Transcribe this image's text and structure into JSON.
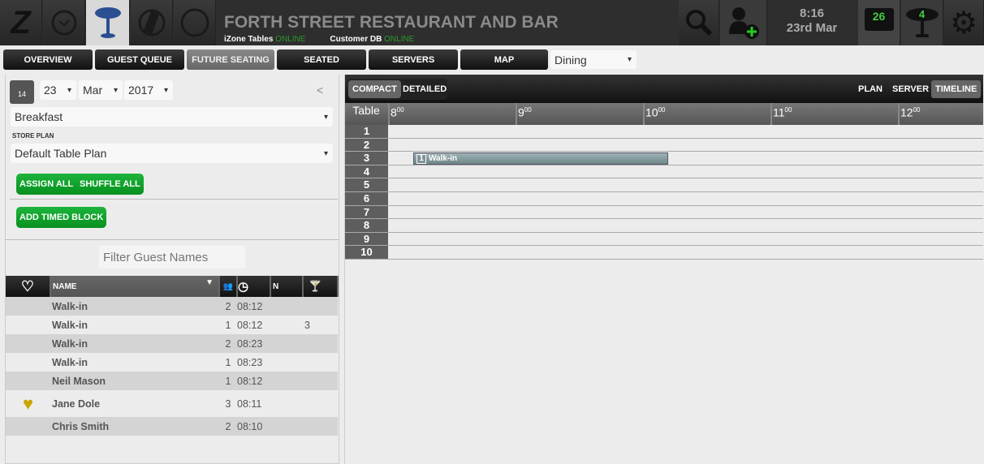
{
  "header": {
    "title": "FORTH STREET RESTAURANT AND BAR",
    "status": [
      {
        "label": "iZone Tables",
        "value": "ONLINE"
      },
      {
        "label": "Customer DB",
        "value": "ONLINE"
      }
    ],
    "time": "8:16",
    "date": "23rd Mar",
    "messages_count": "26",
    "tables_count": "4",
    "icons": [
      "izone-logo-icon",
      "clock-icon",
      "table-icon",
      "phone-icon",
      "circle-icon",
      "search-icon",
      "add-user-icon",
      "message-icon",
      "table-count-icon",
      "gear-icon"
    ]
  },
  "nav": {
    "tabs": [
      "OVERVIEW",
      "GUEST QUEUE",
      "FUTURE SEATING",
      "SEATED",
      "SERVERS",
      "MAP"
    ],
    "active": "FUTURE SEATING",
    "area": "Dining"
  },
  "left": {
    "day": "23",
    "month": "Mar",
    "year": "2017",
    "collapse": "<",
    "session": "Breakfast",
    "store_plan_label": "STORE PLAN",
    "store_plan": "Default Table Plan",
    "assign_all": "ASSIGN ALL",
    "shuffle_all": "SHUFFLE ALL",
    "add_timed_block": "ADD TIMED BLOCK",
    "filter_placeholder": "Filter Guest Names"
  },
  "guests": {
    "columns": {
      "name": "NAME",
      "n": "N"
    },
    "rows": [
      {
        "name": "Walk-in",
        "party": "2",
        "time": "08:12",
        "table": "",
        "vip": false
      },
      {
        "name": "Walk-in",
        "party": "1",
        "time": "08:12",
        "table": "3",
        "vip": false
      },
      {
        "name": "Walk-in",
        "party": "2",
        "time": "08:23",
        "table": "",
        "vip": false
      },
      {
        "name": "Walk-in",
        "party": "1",
        "time": "08:23",
        "table": "",
        "vip": false
      },
      {
        "name": "Neil Mason",
        "party": "1",
        "time": "08:12",
        "table": "",
        "vip": false
      },
      {
        "name": "Jane Dole",
        "party": "3",
        "time": "08:11",
        "table": "",
        "vip": true
      },
      {
        "name": "Chris Smith",
        "party": "2",
        "time": "08:10",
        "table": "",
        "vip": false
      }
    ]
  },
  "timeline": {
    "view_modes": [
      "COMPACT",
      "DETAILED"
    ],
    "active_mode": "COMPACT",
    "views": [
      "PLAN",
      "SERVER",
      "TIMELINE"
    ],
    "active_view": "TIMELINE",
    "table_header": "Table",
    "hours": [
      "8",
      "9",
      "10",
      "11",
      "12"
    ],
    "tables": [
      "1",
      "2",
      "3",
      "4",
      "5",
      "6",
      "7",
      "8",
      "9",
      "10"
    ],
    "bookings": [
      {
        "table": "3",
        "party": "1",
        "name": "Walk-in",
        "start": "08:12",
        "end": "10:12"
      }
    ]
  }
}
